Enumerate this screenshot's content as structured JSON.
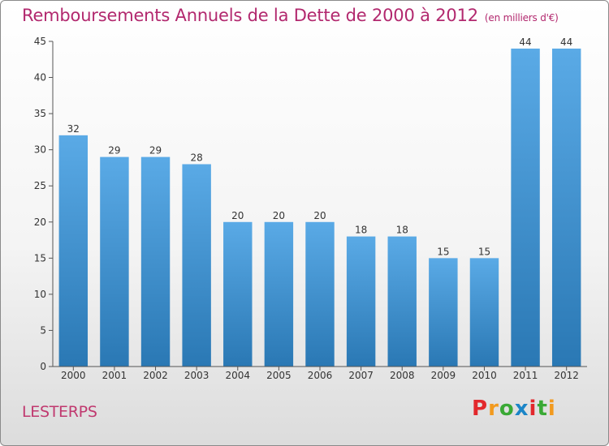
{
  "header": {
    "title": "Remboursements Annuels de la Dette de 2000 à 2012",
    "subtitle": "(en milliers d'€)"
  },
  "footer": {
    "commune": "LESTERPS",
    "logo_text": "Proxiti"
  },
  "colors": {
    "title": "#b2286e",
    "bar_top": "#5aaae6",
    "bar_bottom": "#2a78b4",
    "axis": "#555555",
    "logo": [
      "#e2282c",
      "#f29a1f",
      "#3aa935",
      "#1b85c7",
      "#e2282c",
      "#3aa935",
      "#f29a1f"
    ]
  },
  "chart_data": {
    "type": "bar",
    "categories": [
      "2000",
      "2001",
      "2002",
      "2003",
      "2004",
      "2005",
      "2006",
      "2007",
      "2008",
      "2009",
      "2010",
      "2011",
      "2012"
    ],
    "values": [
      32,
      29,
      29,
      28,
      20,
      20,
      20,
      18,
      18,
      15,
      15,
      44,
      44
    ],
    "data_labels": [
      "32",
      "29",
      "29",
      "28",
      "20",
      "20",
      "20",
      "18",
      "18",
      "15",
      "15",
      "44",
      "44"
    ],
    "title": "Remboursements Annuels de la Dette de 2000 à 2012",
    "ylim": [
      0,
      45
    ],
    "yticks": [
      "0",
      "5",
      "10",
      "15",
      "20",
      "25",
      "30",
      "35",
      "40",
      "45"
    ],
    "grid": false,
    "legend": "none"
  }
}
